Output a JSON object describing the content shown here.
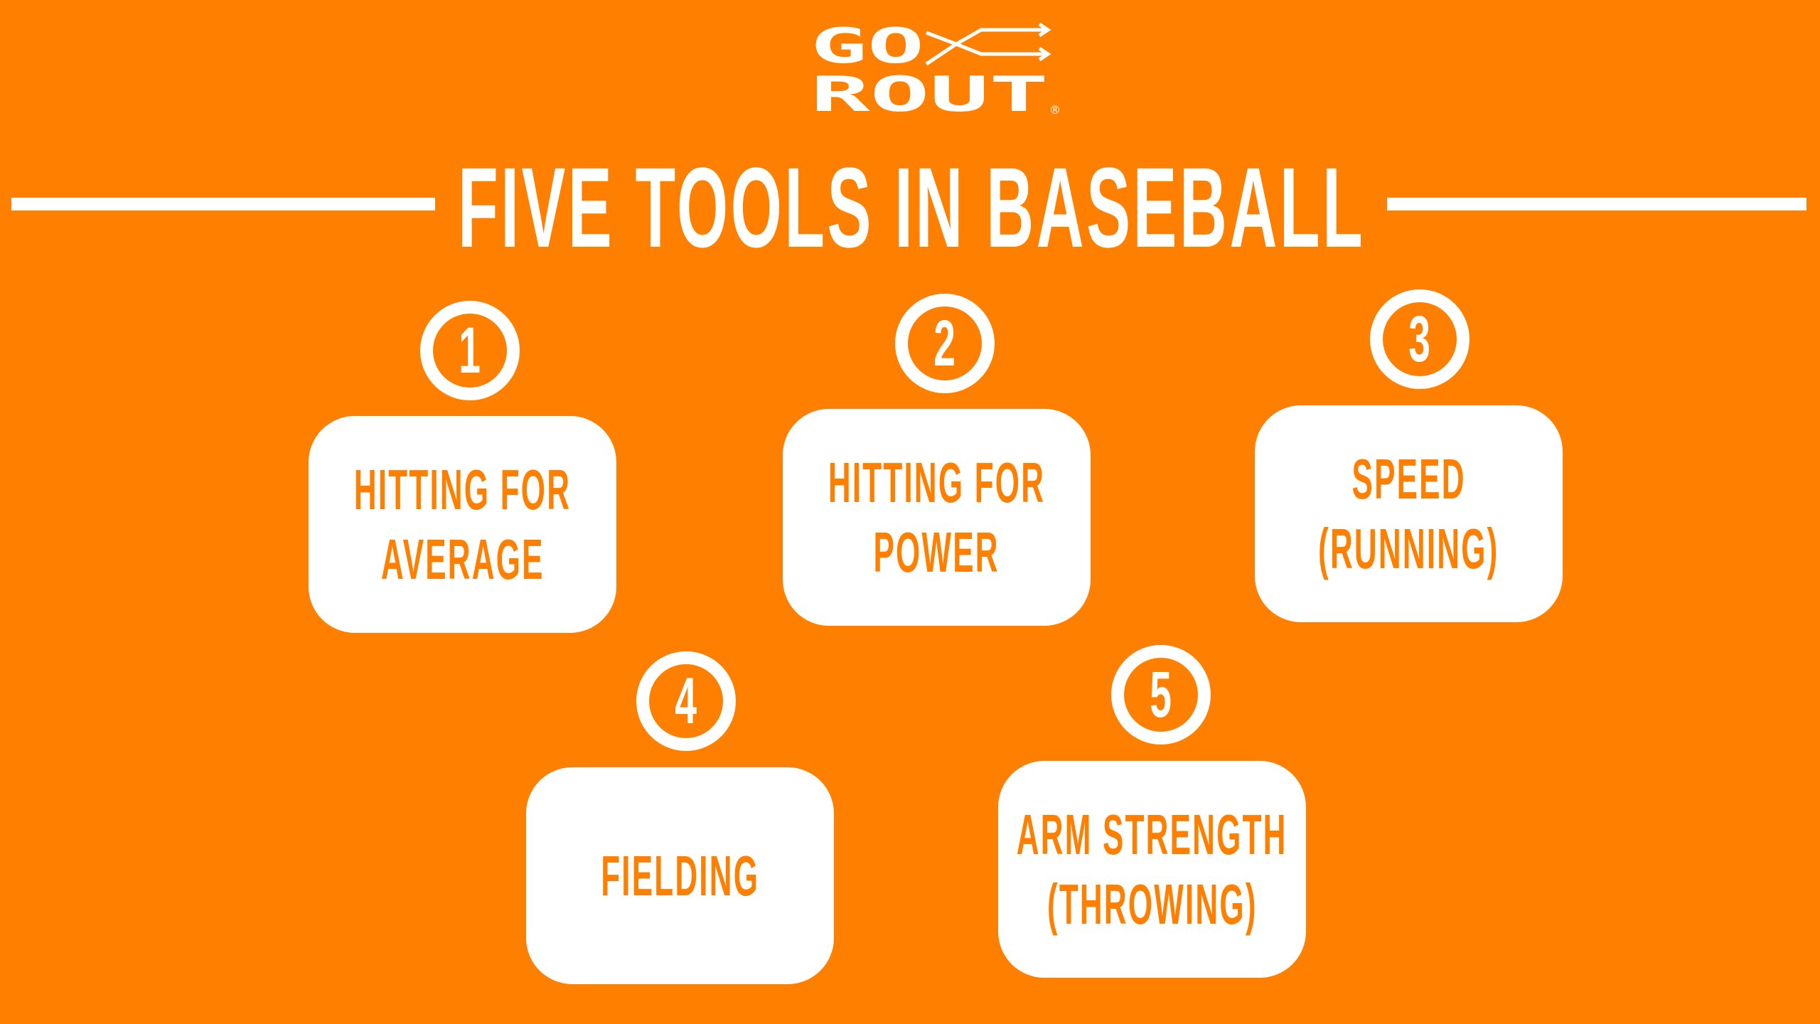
{
  "brand": {
    "logo_line1": "GO",
    "logo_line2": "ROUT",
    "registered_mark": "®",
    "colors": {
      "background": "#FF8000",
      "foreground": "#FFFFFF"
    }
  },
  "title": "FIVE TOOLS IN BASEBALL",
  "tools": [
    {
      "number": "1",
      "lines": [
        "HITTING FOR",
        "AVERAGE"
      ]
    },
    {
      "number": "2",
      "lines": [
        "HITTING FOR",
        "POWER"
      ]
    },
    {
      "number": "3",
      "lines": [
        "SPEED",
        "(RUNNING)"
      ]
    },
    {
      "number": "4",
      "lines": [
        "FIELDING"
      ]
    },
    {
      "number": "5",
      "lines": [
        "ARM STRENGTH",
        "(THROWING)"
      ]
    }
  ]
}
